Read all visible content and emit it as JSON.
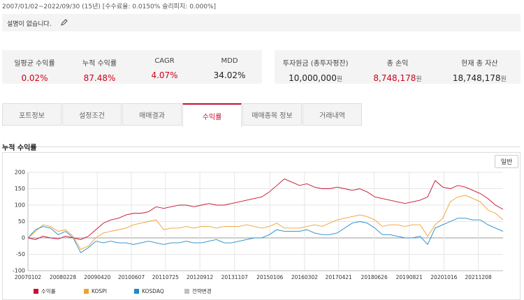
{
  "header": {
    "period": "2007/01/02~2022/09/30 (15년) [수수료율: 0.0150% 슬리피지: 0.000%]",
    "description": "설명이 없습니다."
  },
  "stats": {
    "left": [
      {
        "label": "일평균 수익률",
        "value": "0.02%",
        "color": "#d0021b"
      },
      {
        "label": "누적 수익률",
        "value": "87.48%",
        "color": "#d0021b"
      },
      {
        "label": "CAGR",
        "value": "4.07%",
        "color": "#d0021b"
      },
      {
        "label": "MDD",
        "value": "34.02%",
        "color": "#222222"
      }
    ],
    "right": [
      {
        "label": "투자원금 (총투자평잔)",
        "value": "10,000,000",
        "unit": "원",
        "color": "#222222"
      },
      {
        "label": "총 손익",
        "value": "8,748,178",
        "unit": "원",
        "color": "#d0021b"
      },
      {
        "label": "현재 총 자산",
        "value": "18,748,178",
        "unit": "원",
        "color": "#222222"
      }
    ]
  },
  "tabs": [
    "포트정보",
    "설정조건",
    "매매결과",
    "수익률",
    "매매종목 정보",
    "거래내역"
  ],
  "active_tab": 3,
  "section_title": "누적 수익률",
  "button": "일반",
  "chart_data": {
    "type": "line",
    "x": [
      2007,
      2007.25,
      2007.5,
      2007.75,
      2008,
      2008.25,
      2008.5,
      2008.75,
      2009,
      2009.25,
      2009.5,
      2009.75,
      2010,
      2010.25,
      2010.5,
      2010.75,
      2011,
      2011.25,
      2011.5,
      2011.75,
      2012,
      2012.25,
      2012.5,
      2012.75,
      2013,
      2013.25,
      2013.5,
      2013.75,
      2014,
      2014.25,
      2014.5,
      2014.75,
      2015,
      2015.25,
      2015.5,
      2015.75,
      2016,
      2016.25,
      2016.5,
      2016.75,
      2017,
      2017.25,
      2017.5,
      2017.75,
      2018,
      2018.25,
      2018.5,
      2018.75,
      2019,
      2019.25,
      2019.5,
      2019.75,
      2020,
      2020.25,
      2020.5,
      2020.75,
      2021,
      2021.25,
      2021.5,
      2021.75,
      2022,
      2022.25,
      2022.5,
      2022.75
    ],
    "series": [
      {
        "name": "수익률",
        "color": "#c8102e",
        "values": [
          0,
          -5,
          5,
          0,
          -3,
          5,
          0,
          -5,
          5,
          25,
          45,
          55,
          60,
          70,
          75,
          75,
          80,
          95,
          90,
          95,
          100,
          100,
          95,
          100,
          105,
          100,
          100,
          105,
          110,
          115,
          120,
          125,
          140,
          160,
          180,
          170,
          160,
          165,
          155,
          150,
          150,
          155,
          150,
          145,
          150,
          140,
          125,
          120,
          115,
          110,
          105,
          110,
          115,
          125,
          175,
          155,
          150,
          160,
          155,
          145,
          135,
          120,
          100,
          87
        ]
      },
      {
        "name": "KOSPI",
        "color": "#f0a030",
        "values": [
          0,
          20,
          40,
          35,
          20,
          25,
          5,
          -35,
          -25,
          0,
          15,
          20,
          25,
          30,
          40,
          45,
          50,
          55,
          25,
          30,
          30,
          35,
          30,
          35,
          35,
          30,
          35,
          35,
          35,
          40,
          35,
          30,
          35,
          45,
          30,
          30,
          30,
          35,
          40,
          35,
          45,
          55,
          60,
          65,
          70,
          65,
          55,
          35,
          40,
          40,
          35,
          40,
          40,
          5,
          40,
          60,
          110,
          125,
          130,
          120,
          110,
          85,
          75,
          55
        ]
      },
      {
        "name": "KOSDAQ",
        "color": "#1f8ac8",
        "values": [
          0,
          25,
          35,
          30,
          10,
          20,
          0,
          -45,
          -30,
          -10,
          -15,
          -10,
          -15,
          -15,
          -20,
          -15,
          -10,
          -15,
          -20,
          -15,
          -15,
          -10,
          -15,
          -15,
          -10,
          -5,
          -15,
          -15,
          -10,
          -5,
          0,
          0,
          10,
          25,
          20,
          20,
          20,
          25,
          15,
          10,
          10,
          15,
          30,
          45,
          50,
          45,
          30,
          10,
          10,
          5,
          0,
          0,
          5,
          -20,
          30,
          40,
          50,
          60,
          60,
          55,
          55,
          40,
          30,
          20
        ]
      }
    ],
    "legend_extra": {
      "name": "전략변경",
      "color": "#c0c0c0"
    },
    "xlim": [
      2007,
      2022.75
    ],
    "xticks": [
      {
        "value": 2007.0,
        "label": "20070102"
      },
      {
        "value": 2008.16,
        "label": "20080228"
      },
      {
        "value": 2009.3,
        "label": "20090420"
      },
      {
        "value": 2010.43,
        "label": "20100607"
      },
      {
        "value": 2011.56,
        "label": "20110725"
      },
      {
        "value": 2012.7,
        "label": "20120912"
      },
      {
        "value": 2013.85,
        "label": "20131107"
      },
      {
        "value": 2015.02,
        "label": "20150106"
      },
      {
        "value": 2016.17,
        "label": "20160302"
      },
      {
        "value": 2017.3,
        "label": "20170421"
      },
      {
        "value": 2018.48,
        "label": "20180626"
      },
      {
        "value": 2019.64,
        "label": "20190821"
      },
      {
        "value": 2020.79,
        "label": "20201016"
      },
      {
        "value": 2021.93,
        "label": "20211208"
      }
    ],
    "ylim": [
      -100,
      200
    ],
    "yticks": [
      -100,
      -50,
      0,
      50,
      100,
      150,
      200
    ],
    "grid": true
  }
}
